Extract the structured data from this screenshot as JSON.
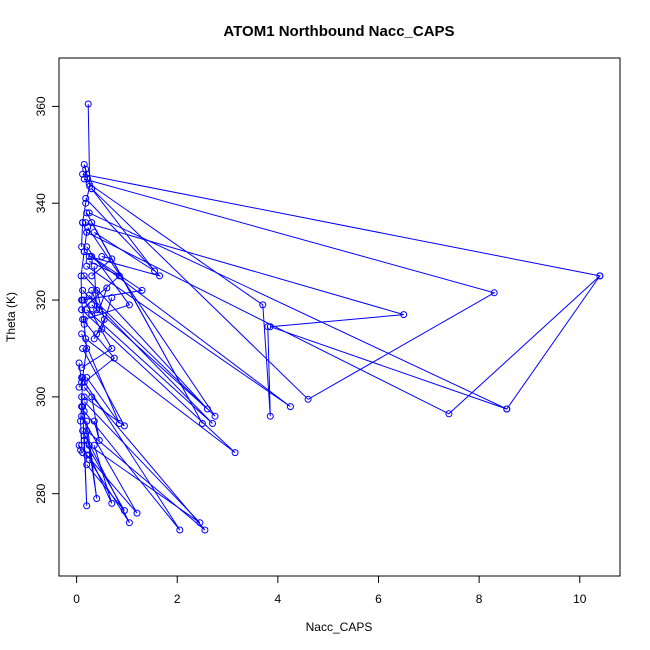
{
  "chart_data": {
    "type": "line",
    "title": "ATOM1 Northbound Nacc_CAPS",
    "xlabel": "Nacc_CAPS",
    "ylabel": "Theta (K)",
    "xlim": [
      -0.35,
      10.8
    ],
    "ylim": [
      263,
      370
    ],
    "x_ticks": [
      0,
      2,
      4,
      6,
      8,
      10
    ],
    "y_ticks": [
      280,
      300,
      320,
      340,
      360
    ],
    "grid": false,
    "series_color": "#0000ff",
    "segments": [
      [
        [
          0.23,
          360.5
        ],
        [
          0.26,
          343.5
        ],
        [
          0.18,
          340
        ],
        [
          0.12,
          336
        ],
        [
          0.1,
          331
        ]
      ],
      [
        [
          0.12,
          336
        ],
        [
          0.2,
          334
        ],
        [
          0.15,
          330
        ],
        [
          0.09,
          325
        ],
        [
          0.1,
          320
        ],
        [
          0.15,
          315
        ],
        [
          0.2,
          310
        ],
        [
          0.12,
          304
        ],
        [
          0.1,
          298
        ],
        [
          0.08,
          295
        ],
        [
          0.1,
          290
        ]
      ],
      [
        [
          0.12,
          346
        ],
        [
          10.4,
          325
        ],
        [
          8.55,
          297.5
        ],
        [
          0.25,
          338
        ]
      ],
      [
        [
          0.15,
          345
        ],
        [
          8.3,
          321.5
        ],
        [
          4.6,
          299.5
        ],
        [
          0.3,
          343
        ]
      ],
      [
        [
          0.2,
          334
        ],
        [
          7.4,
          296.5
        ],
        [
          10.4,
          325
        ]
      ],
      [
        [
          0.18,
          336
        ],
        [
          6.5,
          317
        ],
        [
          3.85,
          314.5
        ],
        [
          8.55,
          297.5
        ]
      ],
      [
        [
          0.25,
          344
        ],
        [
          3.7,
          319
        ],
        [
          3.85,
          296
        ],
        [
          3.8,
          314.5
        ]
      ],
      [
        [
          0.15,
          330
        ],
        [
          4.25,
          298
        ],
        [
          0.2,
          327
        ]
      ],
      [
        [
          0.2,
          338
        ],
        [
          2.5,
          294.5
        ],
        [
          0.3,
          336
        ]
      ],
      [
        [
          0.22,
          335
        ],
        [
          2.75,
          296
        ],
        [
          0.25,
          321
        ]
      ],
      [
        [
          0.15,
          325
        ],
        [
          2.6,
          297.5
        ],
        [
          0.3,
          319
        ]
      ],
      [
        [
          0.12,
          322
        ],
        [
          2.7,
          294.5
        ],
        [
          0.2,
          318
        ]
      ],
      [
        [
          0.1,
          318
        ],
        [
          3.15,
          288.5
        ],
        [
          0.18,
          312
        ]
      ],
      [
        [
          0.3,
          343
        ],
        [
          1.55,
          326
        ],
        [
          0.35,
          334
        ]
      ],
      [
        [
          0.18,
          341
        ],
        [
          1.65,
          325
        ],
        [
          0.25,
          329
        ]
      ],
      [
        [
          0.3,
          329
        ],
        [
          1.3,
          322
        ],
        [
          0.12,
          320
        ]
      ],
      [
        [
          0.25,
          328
        ],
        [
          0.85,
          325
        ],
        [
          0.1,
          318
        ]
      ],
      [
        [
          0.2,
          331
        ],
        [
          1.05,
          319
        ],
        [
          0.15,
          316
        ]
      ],
      [
        [
          0.15,
          320
        ],
        [
          0.7,
          310
        ],
        [
          0.1,
          306
        ]
      ],
      [
        [
          0.12,
          316
        ],
        [
          0.75,
          308
        ],
        [
          0.15,
          303
        ]
      ],
      [
        [
          0.1,
          313
        ],
        [
          0.85,
          294.5
        ],
        [
          0.2,
          304
        ]
      ],
      [
        [
          0.12,
          310
        ],
        [
          0.95,
          294
        ],
        [
          0.15,
          300
        ]
      ],
      [
        [
          0.1,
          304
        ],
        [
          2.05,
          272.5
        ],
        [
          0.15,
          297
        ]
      ],
      [
        [
          0.15,
          302
        ],
        [
          2.55,
          272.5
        ],
        [
          0.2,
          293
        ]
      ],
      [
        [
          0.15,
          299
        ],
        [
          2.45,
          274
        ],
        [
          0.25,
          290
        ]
      ],
      [
        [
          0.1,
          296
        ],
        [
          1.2,
          276
        ],
        [
          0.2,
          288
        ]
      ],
      [
        [
          0.12,
          293
        ],
        [
          1.05,
          274
        ],
        [
          0.25,
          287
        ]
      ],
      [
        [
          0.15,
          291
        ],
        [
          0.95,
          276.5
        ],
        [
          0.2,
          286
        ]
      ],
      [
        [
          0.25,
          288
        ],
        [
          0.7,
          278
        ],
        [
          0.35,
          290
        ]
      ],
      [
        [
          0.1,
          300
        ],
        [
          0.4,
          279
        ],
        [
          0.2,
          295
        ]
      ],
      [
        [
          0.12,
          298
        ],
        [
          0.2,
          277.5
        ],
        [
          0.15,
          292
        ]
      ],
      [
        [
          0.3,
          300
        ],
        [
          0.45,
          291
        ],
        [
          0.35,
          295
        ]
      ],
      [
        [
          0.4,
          322
        ],
        [
          0.55,
          316
        ],
        [
          0.35,
          312
        ]
      ],
      [
        [
          0.6,
          322.5
        ],
        [
          0.45,
          318
        ],
        [
          0.3,
          322
        ]
      ],
      [
        [
          0.7,
          320.5
        ],
        [
          0.5,
          314
        ],
        [
          0.4,
          313
        ]
      ],
      [
        [
          0.3,
          325
        ],
        [
          0.7,
          328.5
        ],
        [
          0.5,
          329
        ]
      ],
      [
        [
          0.05,
          307
        ],
        [
          0.1,
          303
        ],
        [
          0.05,
          302
        ]
      ],
      [
        [
          0.05,
          290
        ],
        [
          0.08,
          289
        ],
        [
          0.12,
          288.5
        ]
      ],
      [
        [
          0.2,
          346
        ],
        [
          0.15,
          348
        ],
        [
          0.18,
          347
        ],
        [
          0.22,
          345
        ]
      ],
      [
        [
          0.35,
          327
        ],
        [
          0.4,
          318
        ],
        [
          0.3,
          317
        ]
      ]
    ]
  }
}
